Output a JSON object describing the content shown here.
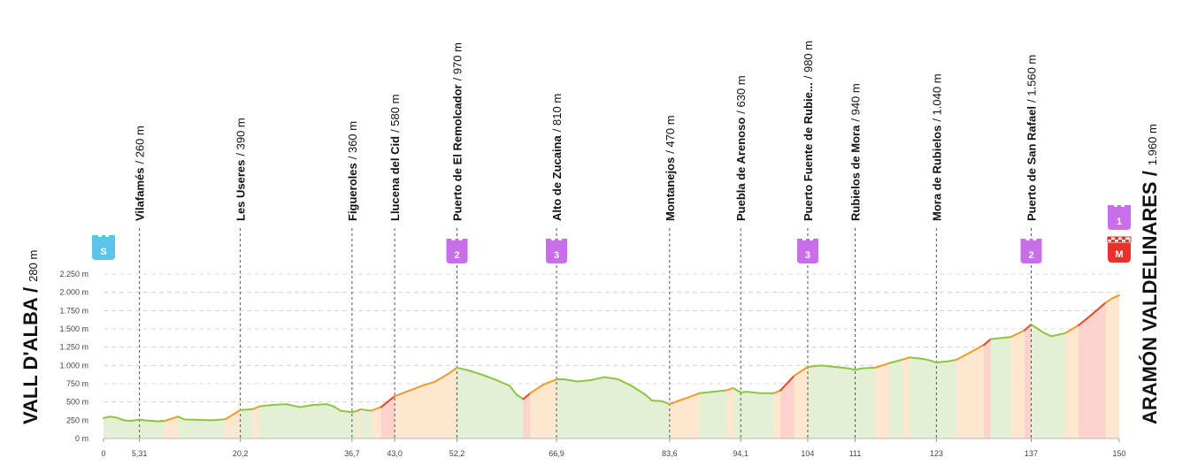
{
  "start": {
    "name": "VALL D'ALBA /",
    "altitude": "280 m",
    "badge": "S"
  },
  "finish": {
    "name": "ARAMÓN VALDELINARES /",
    "altitude": "1.960 m",
    "badge_cat": "1",
    "badge_m": "M"
  },
  "colors": {
    "line_flat": "#8cc63f",
    "line_climb": "#f39a2b",
    "line_steep": "#e8462a",
    "fill_flat": "#e4f0d6",
    "fill_climb": "#fde7cf",
    "fill_steep": "#fbd3cc",
    "kom": "#c86ee8",
    "start_badge": "#5bc4e8",
    "finish_badge": "#e8312a"
  },
  "chart_data": {
    "type": "area",
    "xlim": [
      0,
      150
    ],
    "ylim": [
      0,
      2250
    ],
    "grid": true,
    "y_ticks": [
      {
        "value": 0,
        "label": "0 m"
      },
      {
        "value": 250,
        "label": "250 m"
      },
      {
        "value": 500,
        "label": "500 m"
      },
      {
        "value": 750,
        "label": "750 m"
      },
      {
        "value": 1000,
        "label": "1.000 m"
      },
      {
        "value": 1250,
        "label": "1.250 m"
      },
      {
        "value": 1500,
        "label": "1.500 m"
      },
      {
        "value": 1750,
        "label": "1.750 m"
      },
      {
        "value": 2000,
        "label": "2.000 m"
      },
      {
        "value": 2250,
        "label": "2.250 m"
      }
    ],
    "x_ticks": [
      {
        "value": 0,
        "label": "0"
      },
      {
        "value": 5.31,
        "label": "5,31"
      },
      {
        "value": 20.2,
        "label": "20,2"
      },
      {
        "value": 36.7,
        "label": "36,7"
      },
      {
        "value": 43.0,
        "label": "43,0"
      },
      {
        "value": 52.2,
        "label": "52,2"
      },
      {
        "value": 66.9,
        "label": "66,9"
      },
      {
        "value": 83.6,
        "label": "83,6"
      },
      {
        "value": 94.1,
        "label": "94,1"
      },
      {
        "value": 104,
        "label": "104"
      },
      {
        "value": 111,
        "label": "111"
      },
      {
        "value": 123,
        "label": "123"
      },
      {
        "value": 137,
        "label": "137"
      },
      {
        "value": 150,
        "label": "150"
      }
    ],
    "profile": [
      [
        0,
        280
      ],
      [
        1,
        300
      ],
      [
        2,
        285
      ],
      [
        3,
        250
      ],
      [
        4,
        240
      ],
      [
        5.31,
        260
      ],
      [
        6,
        250
      ],
      [
        8,
        235
      ],
      [
        9,
        240
      ],
      [
        10,
        270
      ],
      [
        11,
        300
      ],
      [
        12,
        260
      ],
      [
        14,
        255
      ],
      [
        16,
        250
      ],
      [
        18,
        265
      ],
      [
        20.2,
        390
      ],
      [
        22,
        400
      ],
      [
        23,
        440
      ],
      [
        25,
        460
      ],
      [
        27,
        470
      ],
      [
        28,
        450
      ],
      [
        29,
        430
      ],
      [
        31,
        460
      ],
      [
        33,
        470
      ],
      [
        34,
        440
      ],
      [
        35,
        380
      ],
      [
        36.7,
        360
      ],
      [
        37.5,
        380
      ],
      [
        38,
        400
      ],
      [
        39.5,
        380
      ],
      [
        41,
        430
      ],
      [
        43.0,
        580
      ],
      [
        45,
        650
      ],
      [
        47,
        720
      ],
      [
        49,
        780
      ],
      [
        51,
        890
      ],
      [
        52.2,
        970
      ],
      [
        54,
        930
      ],
      [
        56,
        870
      ],
      [
        58,
        800
      ],
      [
        60,
        720
      ],
      [
        61,
        600
      ],
      [
        62,
        540
      ],
      [
        63,
        620
      ],
      [
        65,
        740
      ],
      [
        66.9,
        810
      ],
      [
        68,
        810
      ],
      [
        70,
        780
      ],
      [
        72,
        800
      ],
      [
        74,
        840
      ],
      [
        76,
        810
      ],
      [
        78,
        720
      ],
      [
        80,
        600
      ],
      [
        81,
        520
      ],
      [
        82.5,
        510
      ],
      [
        83.6,
        470
      ],
      [
        85,
        520
      ],
      [
        86,
        550
      ],
      [
        88,
        620
      ],
      [
        90,
        640
      ],
      [
        92,
        660
      ],
      [
        93,
        690
      ],
      [
        94.1,
        630
      ],
      [
        95,
        640
      ],
      [
        97,
        620
      ],
      [
        99,
        620
      ],
      [
        100,
        660
      ],
      [
        101,
        760
      ],
      [
        102,
        860
      ],
      [
        104,
        980
      ],
      [
        105,
        990
      ],
      [
        106,
        1000
      ],
      [
        108,
        980
      ],
      [
        110,
        960
      ],
      [
        111,
        940
      ],
      [
        112,
        960
      ],
      [
        114,
        970
      ],
      [
        116,
        1030
      ],
      [
        118,
        1080
      ],
      [
        119,
        1110
      ],
      [
        121,
        1090
      ],
      [
        122,
        1070
      ],
      [
        123,
        1040
      ],
      [
        125,
        1060
      ],
      [
        126,
        1080
      ],
      [
        128,
        1180
      ],
      [
        130,
        1280
      ],
      [
        131,
        1360
      ],
      [
        134,
        1390
      ],
      [
        136,
        1480
      ],
      [
        137,
        1560
      ],
      [
        138,
        1500
      ],
      [
        139,
        1440
      ],
      [
        140,
        1400
      ],
      [
        142,
        1440
      ],
      [
        144,
        1550
      ],
      [
        146,
        1700
      ],
      [
        147,
        1780
      ],
      [
        148,
        1860
      ],
      [
        149,
        1920
      ],
      [
        150,
        1960
      ]
    ],
    "waypoints": [
      {
        "km": 5.31,
        "name": "Vilafamés",
        "alt": "/ 260 m"
      },
      {
        "km": 20.2,
        "name": "Les Useres",
        "alt": "/ 390 m"
      },
      {
        "km": 36.7,
        "name": "Figueroles",
        "alt": "/ 360 m"
      },
      {
        "km": 43.0,
        "name": "Llucena del Cid",
        "alt": "/ 580 m"
      },
      {
        "km": 52.2,
        "name": "Puerto de El Remolcador",
        "alt": "/ 970 m",
        "cat": "2"
      },
      {
        "km": 66.9,
        "name": "Alto de Zucaina",
        "alt": "/ 810 m",
        "cat": "3"
      },
      {
        "km": 83.6,
        "name": "Montanejos",
        "alt": "/ 470 m"
      },
      {
        "km": 94.1,
        "name": "Puebla de Arenoso",
        "alt": "/ 630 m"
      },
      {
        "km": 104,
        "name": "Puerto Fuente de Rubie...",
        "alt": "/ 980 m",
        "cat": "3"
      },
      {
        "km": 111,
        "name": "Rubielos de Mora",
        "alt": "/ 940 m"
      },
      {
        "km": 123,
        "name": "Mora de Rubielos",
        "alt": "/ 1.040 m"
      },
      {
        "km": 137,
        "name": "Puerto de San Rafael",
        "alt": "/ 1.560 m",
        "cat": "2"
      }
    ]
  }
}
